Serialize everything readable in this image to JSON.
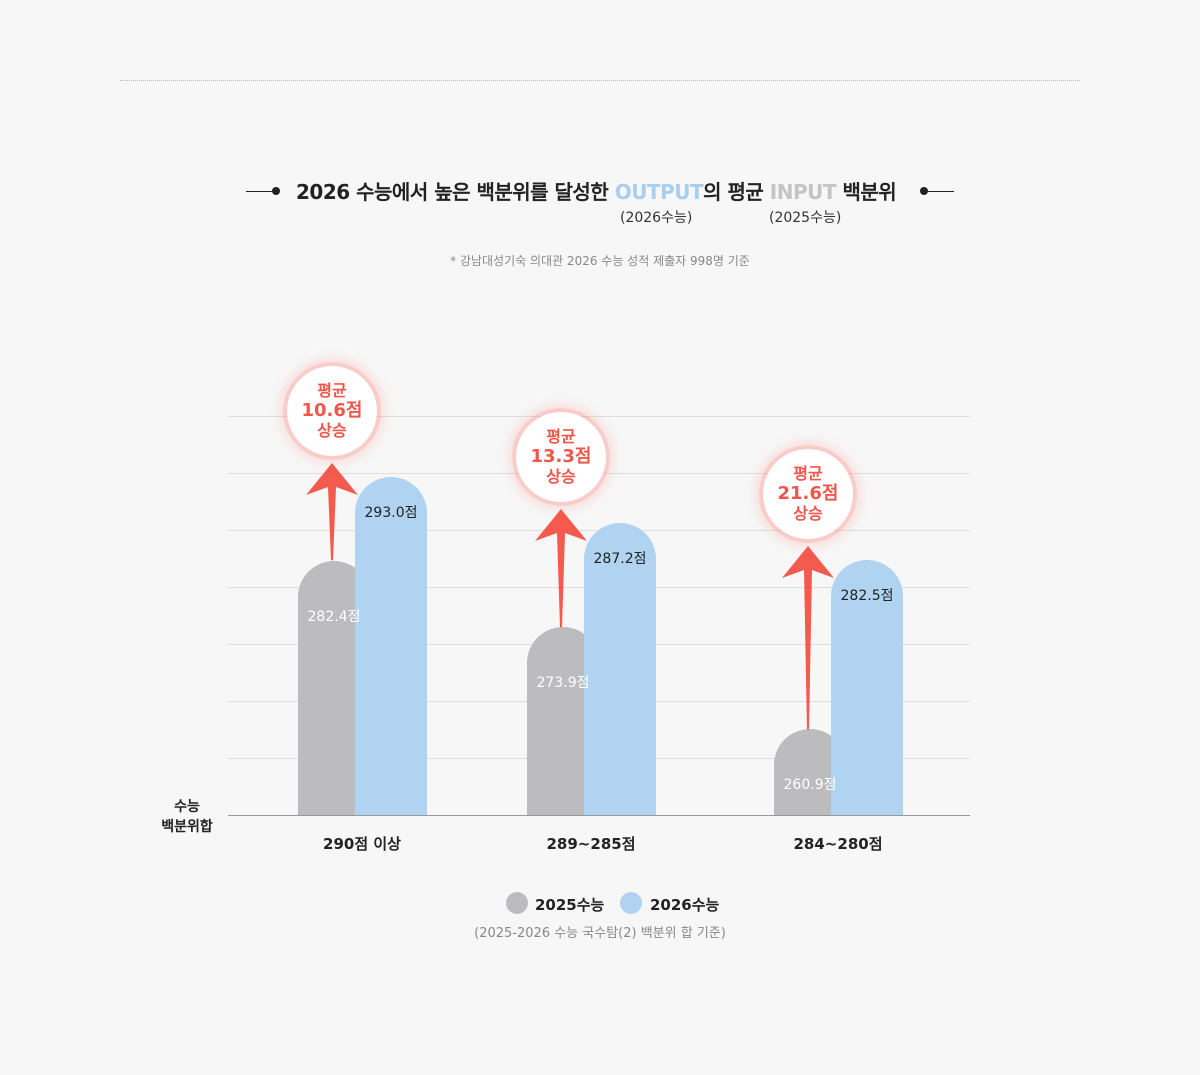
{
  "header": {
    "title_main": "2026 수능에서 높은 백분위를 달성한 ",
    "title_output": "OUTPUT",
    "title_mid": "의  평균 ",
    "title_input": "INPUT",
    "title_end": " 백분위",
    "output_sub": "(2026수능)",
    "input_sub": "(2025수능)",
    "note": "* 강남대성기숙 의대관  2026 수능 성적 제출자 998명 기준"
  },
  "colors": {
    "series_2025": "#bcbcbf",
    "series_2026": "#afd3f0",
    "highlight": "#f0564b"
  },
  "chart_data": {
    "type": "bar",
    "categories": [
      "290점 이상",
      "289~285점",
      "284~280점"
    ],
    "series": [
      {
        "name": "2025수능",
        "values": [
          282.4,
          273.9,
          260.9
        ],
        "labels": [
          "282.4점",
          "273.9점",
          "260.9점"
        ]
      },
      {
        "name": "2026수능",
        "values": [
          293.0,
          287.2,
          282.5
        ],
        "labels": [
          "293.0점",
          "287.2점",
          "282.5점"
        ]
      }
    ],
    "annotations": [
      {
        "line1": "평균",
        "line2": "10.6점",
        "line3": "상승"
      },
      {
        "line1": "평균",
        "line2": "13.3점",
        "line3": "상승"
      },
      {
        "line1": "평균",
        "line2": "21.6점",
        "line3": "상승"
      }
    ],
    "ylabel_line1": "수능",
    "ylabel_line2": "백분위합",
    "legend_note": "(2025-2026 수능 국수탐(2) 백분위 합 기준)",
    "ylim": [
      250,
      300
    ],
    "grid": true,
    "legend_position": "bottom"
  }
}
